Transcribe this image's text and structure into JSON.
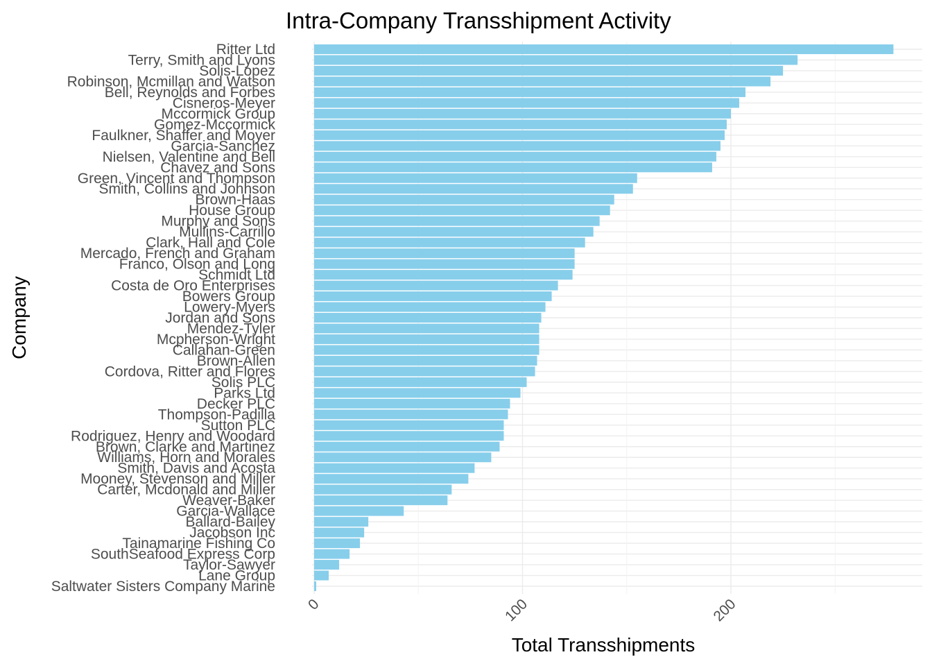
{
  "chart_data": {
    "type": "bar",
    "orientation": "horizontal",
    "title": "Intra-Company Transshipment Activity",
    "xlabel": "Total Transshipments",
    "ylabel": "Company",
    "xlim": [
      0,
      291
    ],
    "x_ticks": [
      0,
      100,
      200
    ],
    "grid": true,
    "legend": "none",
    "bar_color": "#87CEEB",
    "categories": [
      "Ritter Ltd",
      "Terry, Smith and Lyons",
      "Solis-Lopez",
      "Robinson, Mcmillan and Watson",
      "Bell, Reynolds and Forbes",
      "Cisneros-Meyer",
      "Mccormick Group",
      "Gomez-Mccormick",
      "Faulkner, Shaffer and Moyer",
      "Garcia-Sanchez",
      "Nielsen, Valentine and Bell",
      "Chavez and Sons",
      "Green, Vincent and Thompson",
      "Smith, Collins and Johnson",
      "Brown-Haas",
      "House Group",
      "Murphy and Sons",
      "Mullins-Carrillo",
      "Clark, Hall and Cole",
      "Mercado, French and Graham",
      "Franco, Olson and Long",
      "Schmidt Ltd",
      "Costa de Oro Enterprises",
      "Bowers Group",
      "Lowery-Myers",
      "Jordan and Sons",
      "Mendez-Tyler",
      "Mcpherson-Wright",
      "Callahan-Green",
      "Brown-Allen",
      "Cordova, Ritter and Flores",
      "Solis PLC",
      "Parks Ltd",
      "Decker PLC",
      "Thompson-Padilla",
      "Sutton PLC",
      "Rodriguez, Henry and Woodard",
      "Brown, Clarke and Martinez",
      "Williams, Horn and Morales",
      "Smith, Davis and Acosta",
      "Mooney, Stevenson and Miller",
      "Carter, Mcdonald and Miller",
      "Weaver-Baker",
      "Garcia-Wallace",
      "Ballard-Bailey",
      "Jacobson Inc",
      "Tainamarine Fishing Co",
      "SouthSeafood Express Corp",
      "Taylor-Sawyer",
      "Lane Group",
      "Saltwater Sisters Company Marine"
    ],
    "values": [
      278,
      232,
      225,
      219,
      207,
      204,
      200,
      198,
      197,
      195,
      193,
      191,
      155,
      153,
      144,
      142,
      137,
      134,
      130,
      125,
      125,
      124,
      117,
      114,
      111,
      109,
      108,
      108,
      108,
      107,
      106,
      102,
      99,
      94,
      93,
      91,
      91,
      89,
      85,
      77,
      74,
      66,
      64,
      43,
      26,
      24,
      22,
      17,
      12,
      7,
      1
    ]
  }
}
